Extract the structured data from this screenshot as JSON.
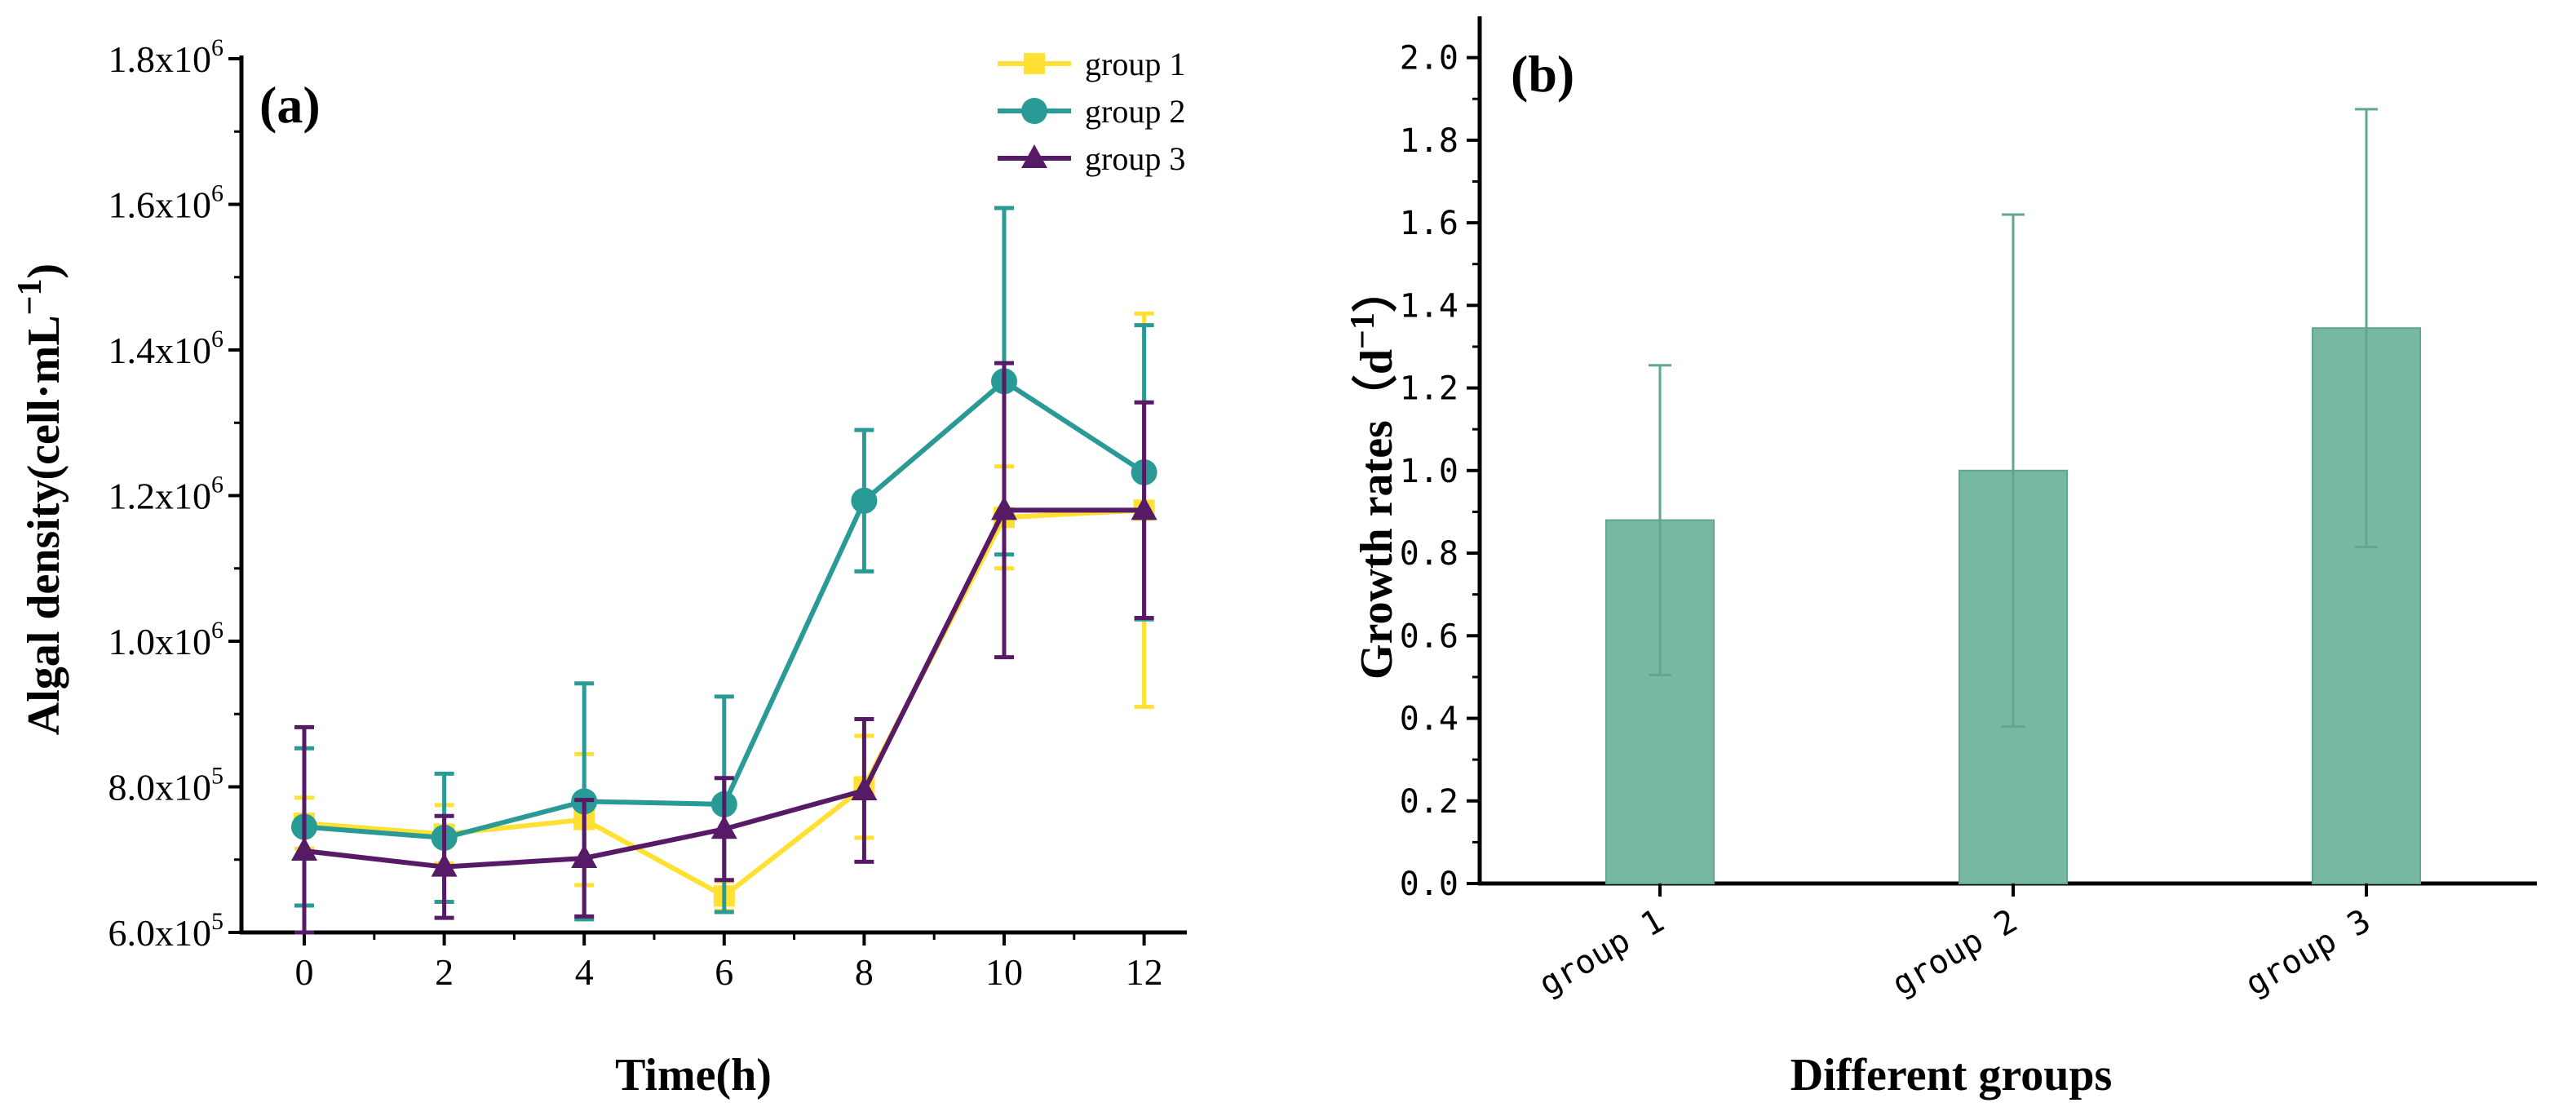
{
  "chart_data": [
    {
      "panel_label": "(a)",
      "type": "line",
      "xlabel": "Time(h)",
      "ylabel": "Algal density(cell·mL",
      "ylabel_unit_exponent": "−1",
      "ylabel_close": ")",
      "x": [
        0,
        2,
        4,
        6,
        8,
        10,
        12
      ],
      "xlim": [
        -1,
        13
      ],
      "ylim": [
        600000,
        1800000
      ],
      "x_ticks": [
        0,
        2,
        4,
        6,
        8,
        10,
        12
      ],
      "y_ticks": [
        {
          "mantissa": "6.0x10",
          "exp": "5",
          "value": 600000
        },
        {
          "mantissa": "8.0x10",
          "exp": "5",
          "value": 800000
        },
        {
          "mantissa": "1.0x10",
          "exp": "6",
          "value": 1000000
        },
        {
          "mantissa": "1.2x10",
          "exp": "6",
          "value": 1200000
        },
        {
          "mantissa": "1.4x10",
          "exp": "6",
          "value": 1400000
        },
        {
          "mantissa": "1.6x10",
          "exp": "6",
          "value": 1600000
        },
        {
          "mantissa": "1.8x10",
          "exp": "6",
          "value": 1800000
        }
      ],
      "legend_position": "top-right",
      "series": [
        {
          "name": "group 1",
          "color": "#FFE033",
          "marker": "square",
          "values": [
            750000,
            735000,
            755000,
            650000,
            800000,
            1170000,
            1180000
          ],
          "errors": [
            35000,
            40000,
            90000,
            20000,
            70000,
            70000,
            270000
          ]
        },
        {
          "name": "group 2",
          "color": "#2A9A96",
          "marker": "circle",
          "values": [
            745000,
            730000,
            780000,
            776000,
            1193000,
            1357000,
            1232000
          ],
          "errors": [
            108000,
            88000,
            162000,
            148000,
            97000,
            238000,
            202000
          ]
        },
        {
          "name": "group 3",
          "color": "#571A66",
          "marker": "triangle",
          "values": [
            712000,
            690000,
            702000,
            742000,
            795000,
            1180000,
            1180000
          ],
          "errors": [
            170000,
            70000,
            80000,
            70000,
            98000,
            202000,
            148000
          ]
        }
      ]
    },
    {
      "panel_label": "(b)",
      "type": "bar",
      "xlabel": "Different groups",
      "ylabel": "Growth rates（d",
      "ylabel_unit_exponent": "−1",
      "ylabel_close": "）",
      "categories": [
        "group 1",
        "group 2",
        "group 3"
      ],
      "values": [
        0.88,
        1.0,
        1.345
      ],
      "errors": [
        0.375,
        0.62,
        0.53
      ],
      "ylim": [
        0,
        2.1
      ],
      "y_ticks": [
        "0.0",
        "0.2",
        "0.4",
        "0.6",
        "0.8",
        "1.0",
        "1.2",
        "1.4",
        "1.6",
        "1.8",
        "2.0"
      ],
      "bar_color": "#76B9A0",
      "bar_edge_color": "#5EA88C"
    }
  ]
}
